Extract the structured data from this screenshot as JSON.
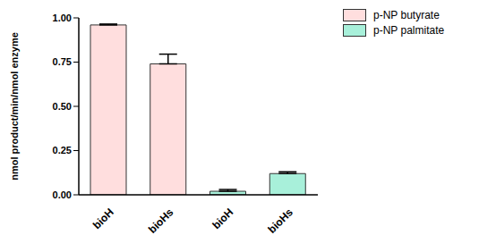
{
  "chart_data": {
    "type": "bar",
    "y_label": "nmol product/min/nmol enzyme",
    "categories": [
      "bioH",
      "bioHs",
      "bioH",
      "bioHs"
    ],
    "series": [
      {
        "name": "p-NP butyrate",
        "color": "#ffdede",
        "values": [
          0.96,
          0.74,
          null,
          null
        ],
        "errors": [
          0.005,
          0.055,
          null,
          null
        ]
      },
      {
        "name": "p-NP palmitate",
        "color": "#a8f0da",
        "values": [
          null,
          null,
          0.02,
          0.12
        ],
        "errors": [
          null,
          null,
          0.01,
          0.01
        ]
      }
    ],
    "ylim": [
      0,
      1
    ],
    "yticks": [
      {
        "value": 0,
        "label": "0.00"
      },
      {
        "value": 0.25,
        "label": "0.25"
      },
      {
        "value": 0.5,
        "label": "0.50"
      },
      {
        "value": 0.75,
        "label": "0.75"
      },
      {
        "value": 1,
        "label": "1.00"
      }
    ],
    "legend": "top-right"
  }
}
